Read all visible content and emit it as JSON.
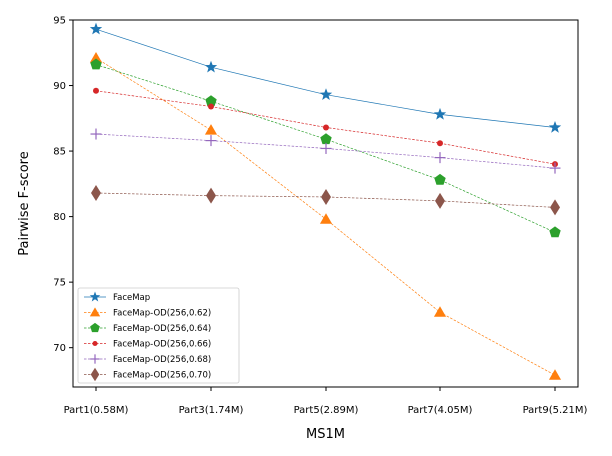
{
  "chart_data": {
    "type": "line",
    "title": "",
    "xlabel": "MS1M",
    "ylabel": "Pairwise  F-score",
    "categories": [
      "Part1(0.58M)",
      "Part3(1.74M)",
      "Part5(2.89M)",
      "Part7(4.05M)",
      "Part9(5.21M)"
    ],
    "ylim": [
      67,
      95
    ],
    "yticks": [
      70,
      75,
      80,
      85,
      90,
      95
    ],
    "legend_position": "lower-left",
    "series": [
      {
        "name": "FaceMap",
        "values": [
          94.3,
          91.4,
          89.3,
          87.8,
          86.8
        ],
        "color": "#1f77b4",
        "marker": "star",
        "dash": "solid"
      },
      {
        "name": "FaceMap-OD(256,0.62)",
        "values": [
          92.1,
          86.6,
          79.8,
          72.7,
          67.9
        ],
        "color": "#ff7f0e",
        "marker": "triangle",
        "dash": "dashed"
      },
      {
        "name": "FaceMap-OD(256,0.64)",
        "values": [
          91.6,
          88.8,
          85.9,
          82.8,
          78.8
        ],
        "color": "#2ca02c",
        "marker": "pentagon",
        "dash": "dashed"
      },
      {
        "name": "FaceMap-OD(256,0.66)",
        "values": [
          89.6,
          88.4,
          86.8,
          85.6,
          84.0
        ],
        "color": "#d62728",
        "marker": "circle",
        "dash": "dashed"
      },
      {
        "name": "FaceMap-OD(256,0.68)",
        "values": [
          86.3,
          85.8,
          85.2,
          84.5,
          83.7
        ],
        "color": "#9467bd",
        "marker": "plus",
        "dash": "dashed"
      },
      {
        "name": "FaceMap-OD(256,0.70)",
        "values": [
          81.8,
          81.6,
          81.5,
          81.2,
          80.7
        ],
        "color": "#8c564b",
        "marker": "diamond",
        "dash": "dashed"
      }
    ]
  }
}
